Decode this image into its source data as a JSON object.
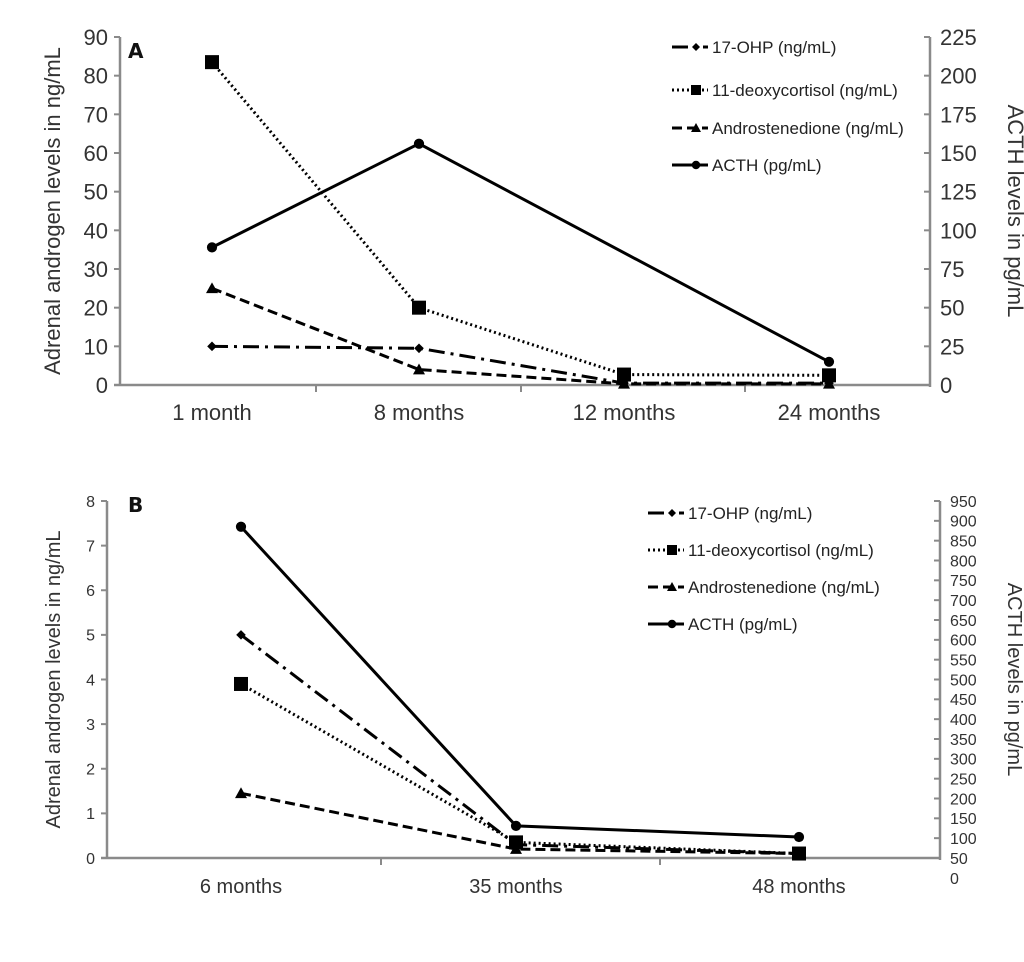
{
  "chart_data": [
    {
      "panel": "A",
      "type": "line",
      "title": "",
      "xlabel": "",
      "ylabel": "Adrenal androgen levels in ng/mL",
      "y2label": "ACTH levels in pg/mL",
      "categories": [
        "1 month",
        "8 months",
        "12 months",
        "24 months"
      ],
      "ylim": [
        0,
        90
      ],
      "yticks": [
        0,
        10,
        20,
        30,
        40,
        50,
        60,
        70,
        80,
        90
      ],
      "y2lim": [
        0,
        225
      ],
      "y2ticks": [
        0,
        25,
        50,
        75,
        100,
        125,
        150,
        175,
        200,
        225
      ],
      "grid": false,
      "legend_position": "top-right",
      "series": [
        {
          "name": "17-OHP (ng/mL)",
          "axis": "left",
          "marker": "diamond",
          "dash": "dashdot",
          "values": [
            10,
            9.5,
            0.5,
            0.5
          ]
        },
        {
          "name": "11-deoxycortisol (ng/mL)",
          "axis": "left",
          "marker": "square",
          "dash": "dotted",
          "values": [
            83.5,
            20,
            2.7,
            2.5
          ]
        },
        {
          "name": "Androstenedione (ng/mL)",
          "axis": "left",
          "marker": "triangle",
          "dash": "dashed",
          "values": [
            25,
            4,
            0.3,
            0.3
          ]
        },
        {
          "name": "ACTH (pg/mL)",
          "axis": "right",
          "marker": "circle",
          "dash": "solid",
          "values": [
            89,
            156,
            null,
            15
          ]
        }
      ]
    },
    {
      "panel": "B",
      "type": "line",
      "title": "",
      "xlabel": "",
      "ylabel": "Adrenal androgen levels in ng/mL",
      "y2label": "ACTH levels in pg/mL",
      "categories": [
        "6 months",
        "35 months",
        "48 months"
      ],
      "ylim": [
        0,
        8
      ],
      "yticks": [
        0,
        1,
        2,
        3,
        4,
        5,
        6,
        7,
        8
      ],
      "y2lim": [
        50,
        950
      ],
      "y2ticks": [
        50,
        100,
        150,
        200,
        250,
        300,
        350,
        400,
        450,
        500,
        550,
        600,
        650,
        700,
        750,
        800,
        850,
        900,
        950
      ],
      "y2_extra_label": "0",
      "grid": false,
      "legend_position": "top-right",
      "series": [
        {
          "name": "17-OHP (ng/mL)",
          "axis": "left",
          "marker": "diamond",
          "dash": "dashdot",
          "values": [
            5.0,
            0.3,
            0.1
          ]
        },
        {
          "name": "11-deoxycortisol (ng/mL)",
          "axis": "left",
          "marker": "square",
          "dash": "dotted",
          "values": [
            3.9,
            0.35,
            0.1
          ]
        },
        {
          "name": "Androstenedione (ng/mL)",
          "axis": "left",
          "marker": "triangle",
          "dash": "dashed",
          "values": [
            1.45,
            0.2,
            0.1
          ]
        },
        {
          "name": "ACTH (pg/mL)",
          "axis": "right",
          "marker": "circle",
          "dash": "solid",
          "values": [
            885,
            131,
            103
          ]
        }
      ]
    }
  ]
}
